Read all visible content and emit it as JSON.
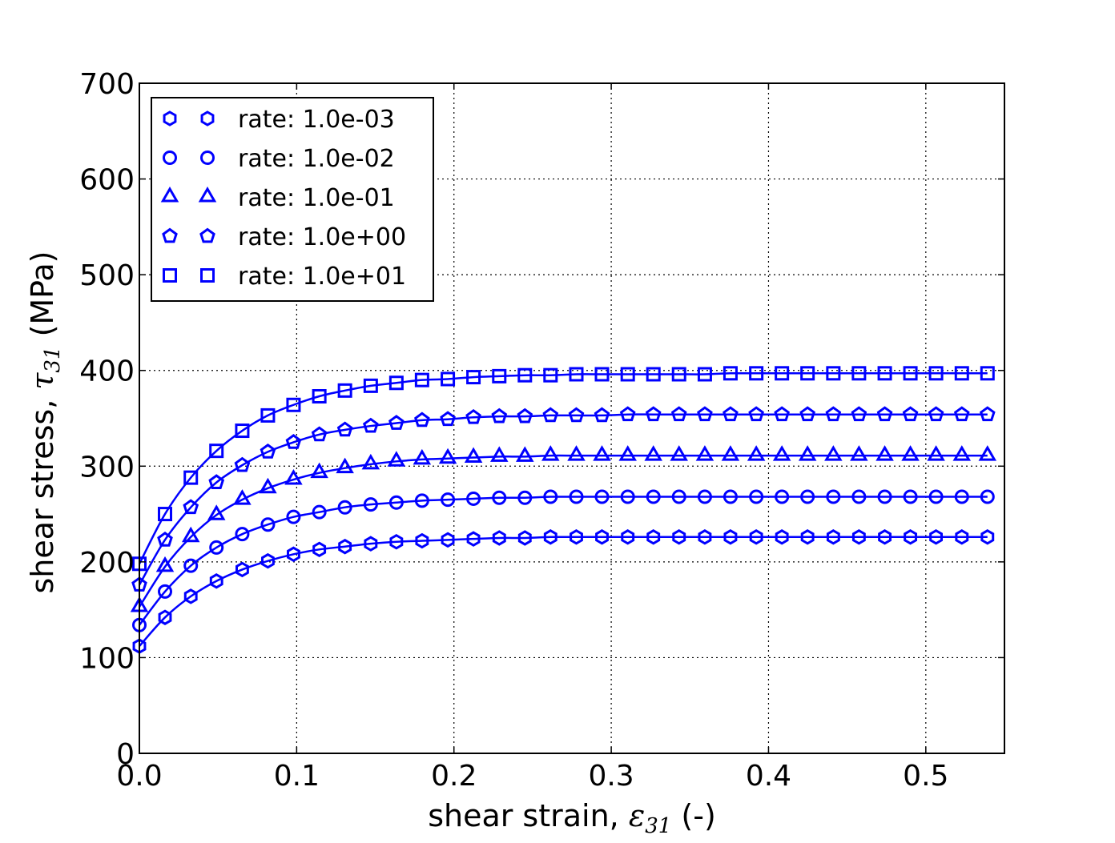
{
  "chart_data": {
    "type": "line",
    "title": "",
    "xlabel": "shear strain, ε",
    "xlabel_sub": "31",
    "xlabel_suffix": " (-)",
    "ylabel": "shear stress, τ",
    "ylabel_sub": "31",
    "ylabel_suffix": " (MPa)",
    "xlim": [
      0,
      0.55
    ],
    "ylim": [
      0,
      700
    ],
    "xticks": [
      0.0,
      0.1,
      0.2,
      0.3,
      0.4,
      0.5
    ],
    "xtick_labels": [
      "0.0",
      "0.1",
      "0.2",
      "0.3",
      "0.4",
      "0.5"
    ],
    "yticks": [
      0,
      100,
      200,
      300,
      400,
      500,
      600,
      700
    ],
    "ytick_labels": [
      "0",
      "100",
      "200",
      "300",
      "400",
      "500",
      "600",
      "700"
    ],
    "grid": true,
    "legend_position": "top-left",
    "line_color": "#0000ff",
    "x": [
      0.0,
      0.0163,
      0.0327,
      0.049,
      0.0654,
      0.0817,
      0.098,
      0.1144,
      0.1307,
      0.1471,
      0.1634,
      0.1797,
      0.1961,
      0.2124,
      0.2288,
      0.2451,
      0.2614,
      0.2778,
      0.2941,
      0.3105,
      0.3268,
      0.3431,
      0.3595,
      0.3758,
      0.3922,
      0.4085,
      0.4248,
      0.4412,
      0.4575,
      0.4739,
      0.4902,
      0.5065,
      0.5229,
      0.5392
    ],
    "series": [
      {
        "name": "rate: 1.0e-03",
        "marker": "hexagon",
        "values": [
          112,
          142,
          164,
          180,
          192,
          201,
          208,
          213,
          216,
          219,
          221,
          222,
          223,
          224,
          225,
          225,
          226,
          226,
          226,
          226,
          226,
          226,
          226,
          226,
          226,
          226,
          226,
          226,
          226,
          226,
          226,
          226,
          226,
          226
        ]
      },
      {
        "name": "rate: 1.0e-02",
        "marker": "circle",
        "values": [
          134,
          169,
          196,
          215,
          229,
          239,
          247,
          252,
          257,
          260,
          262,
          264,
          265,
          266,
          267,
          267,
          268,
          268,
          268,
          268,
          268,
          268,
          268,
          268,
          268,
          268,
          268,
          268,
          268,
          268,
          268,
          268,
          268,
          268
        ]
      },
      {
        "name": "rate: 1.0e-01",
        "marker": "triangle",
        "values": [
          153,
          195,
          226,
          249,
          265,
          277,
          286,
          293,
          298,
          302,
          305,
          307,
          308,
          309,
          310,
          310,
          311,
          311,
          311,
          311,
          311,
          311,
          311,
          311,
          311,
          311,
          311,
          311,
          311,
          311,
          311,
          311,
          311,
          311
        ]
      },
      {
        "name": "rate: 1.0e+00",
        "marker": "pentagon",
        "values": [
          176,
          223,
          257,
          283,
          301,
          315,
          325,
          333,
          338,
          342,
          345,
          348,
          349,
          351,
          352,
          352,
          353,
          353,
          353,
          354,
          354,
          354,
          354,
          354,
          354,
          354,
          354,
          354,
          354,
          354,
          354,
          354,
          354,
          354
        ]
      },
      {
        "name": "rate: 1.0e+01",
        "marker": "square",
        "values": [
          198,
          250,
          288,
          316,
          337,
          353,
          364,
          373,
          379,
          384,
          387,
          390,
          391,
          393,
          394,
          395,
          395,
          396,
          396,
          396,
          396,
          396,
          396,
          397,
          397,
          397,
          397,
          397,
          397,
          397,
          397,
          397,
          397,
          397
        ]
      }
    ]
  }
}
